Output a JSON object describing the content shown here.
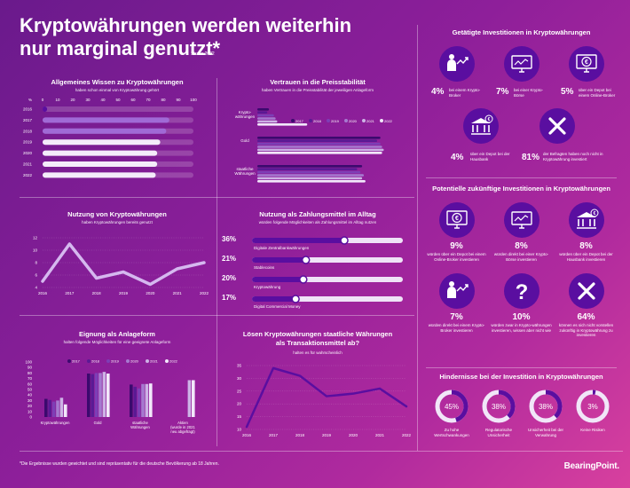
{
  "header": {
    "title": "Kryptowährungen werden weiterhin nur marginal genutzt*",
    "subtitle": "Studie 2022"
  },
  "footnote": "*Die Ergebnisse wurden gewichtet und sind repräsentativ für die deutsche Bevölkerung ab 18 Jahren.",
  "brand": "BearingPoint.",
  "colors": {
    "bg_start": "#6a1a8c",
    "bg_end": "#d8409e",
    "accent": "#5a0ea0",
    "track": "#e9d9f2"
  },
  "panels": {
    "wissen": {
      "title": "Allgemeines Wissen zu Kryptowährungen",
      "subtitle": "haben schon einmal von Kryptowährung gehört"
    },
    "vertrauen": {
      "title": "Vertrauen in die Preisstabilität",
      "subtitle": "haben Vertrauen in die Preisstabilität der jeweiligen Anlageform"
    },
    "nutzung": {
      "title": "Nutzung von Kryptowährungen",
      "subtitle": "haben Kryptowährungen bereits genutzt"
    },
    "zahlung": {
      "title": "Nutzung als Zahlungsmittel im Alltag",
      "subtitle": "würden folgende Möglichkeiten als Zahlungsmittel im Alltag nutzen"
    },
    "eignung": {
      "title": "Eignung als Anlageform",
      "subtitle": "halten folgende Möglichkeiten für eine geeignete Anlageform"
    },
    "loesen": {
      "title_line1": "Lösen Kryptowährungen staatliche Währungen",
      "title_line2": "als Transaktionsmittel ab?",
      "subtitle": "halten es für wahrscheinlich"
    }
  },
  "chart_data": [
    {
      "id": "wissen",
      "type": "bar",
      "orientation": "horizontal",
      "categories": [
        "2016",
        "2017",
        "2018",
        "2019",
        "2020",
        "2021",
        "2022"
      ],
      "values": [
        3,
        84,
        82,
        78,
        76,
        76,
        75
      ],
      "xlim": [
        0,
        100
      ],
      "xticks": [
        "%",
        "0",
        "10",
        "20",
        "30",
        "40",
        "50",
        "60",
        "70",
        "80",
        "90",
        "100"
      ]
    },
    {
      "id": "vertrauen",
      "type": "bar",
      "orientation": "horizontal",
      "categories": [
        "Krypto-\nwährungen",
        "Gold",
        "staatliche\nWährungen"
      ],
      "legend": [
        "2017",
        "2018",
        "2019",
        "2020",
        "2021",
        "2022"
      ],
      "series": [
        {
          "name": "2017",
          "values": [
            7,
            74,
            63
          ]
        },
        {
          "name": "2018",
          "values": [
            6,
            72,
            60
          ]
        },
        {
          "name": "2019",
          "values": [
            10,
            74,
            62
          ]
        },
        {
          "name": "2020",
          "values": [
            11,
            75,
            64
          ]
        },
        {
          "name": "2021",
          "values": [
            12,
            76,
            63
          ]
        },
        {
          "name": "2022",
          "values": [
            30,
            75,
            65
          ]
        }
      ]
    },
    {
      "id": "nutzung",
      "type": "line",
      "x": [
        "2016",
        "2017",
        "2018",
        "2019",
        "2020",
        "2021",
        "2022"
      ],
      "values": [
        5,
        11,
        5.5,
        6.5,
        4.5,
        7,
        8
      ],
      "ylim": [
        4,
        12
      ],
      "yticks": [
        "4",
        "6",
        "8",
        "10",
        "12"
      ]
    },
    {
      "id": "zahlung",
      "type": "bar",
      "orientation": "horizontal",
      "categories": [
        "Digitale Zentralbankwährungen",
        "Stablecoins",
        "Kryptowährung",
        "Digital Commercial Money"
      ],
      "values": [
        36,
        21,
        20,
        17
      ],
      "labels": [
        "36%",
        "21%",
        "20%",
        "17%"
      ]
    },
    {
      "id": "eignung",
      "type": "bar",
      "categories": [
        "Kryptowährungen",
        "Gold",
        "staatliche\nWährungen",
        "Aktien\n(wurde in 2021\nneu abgefragt)"
      ],
      "legend": [
        "2017",
        "2018",
        "2019",
        "2020",
        "2021",
        "2022"
      ],
      "series": [
        {
          "name": "2017",
          "values": [
            33,
            79,
            59,
            null
          ]
        },
        {
          "name": "2018",
          "values": [
            31,
            78,
            55,
            null
          ]
        },
        {
          "name": "2019",
          "values": [
            28,
            80,
            52,
            null
          ]
        },
        {
          "name": "2020",
          "values": [
            30,
            80,
            60,
            null
          ]
        },
        {
          "name": "2021",
          "values": [
            35,
            82,
            60,
            67
          ]
        },
        {
          "name": "2022",
          "values": [
            23,
            79,
            61,
            67
          ]
        }
      ],
      "ylim": [
        0,
        100
      ],
      "yticks": [
        "0",
        "10",
        "20",
        "30",
        "40",
        "50",
        "60",
        "70",
        "80",
        "90",
        "100"
      ]
    },
    {
      "id": "loesen",
      "type": "line",
      "x": [
        "2016",
        "2017",
        "2018",
        "2019",
        "2020",
        "2021",
        "2022"
      ],
      "values": [
        11,
        34,
        31,
        23,
        24,
        26,
        19
      ],
      "ylim": [
        10,
        35
      ],
      "yticks": [
        "10",
        "15",
        "20",
        "25",
        "30",
        "35"
      ]
    }
  ],
  "investments": {
    "title": "Getätigte Investitionen in Kryptowährungen",
    "row1": [
      {
        "icon": "person-chart-icon",
        "pct": "4%",
        "text": "bei einem Krypto-Broker"
      },
      {
        "icon": "monitor-chart-icon",
        "pct": "7%",
        "text": "bei einer Krypto-Börse"
      },
      {
        "icon": "euro-monitor-icon",
        "pct": "5%",
        "text": "über ein Depot bei einem Online-Broker"
      }
    ],
    "row2": [
      {
        "icon": "bank-euro-icon",
        "pct": "4%",
        "text": "über ein Depot bei der Hausbank"
      },
      {
        "icon": "x-icon",
        "pct": "81%",
        "text": "der Befragten haben noch nicht in Kryptowährung investiert"
      }
    ]
  },
  "future": {
    "title": "Potentielle zukünftige Investitionen in Kryptowährungen",
    "items": [
      {
        "icon": "euro-monitor-icon",
        "pct": "9%",
        "text": "würden über ein Depot bei einem Online-Broker investieren"
      },
      {
        "icon": "monitor-chart-icon",
        "pct": "8%",
        "text": "würden direkt bei einer Krypto-Börse investieren"
      },
      {
        "icon": "bank-euro-icon",
        "pct": "8%",
        "text": "würden über ein Depot bei der Hausbank investieren"
      },
      {
        "icon": "person-chart-icon",
        "pct": "7%",
        "text": "würden direkt bei einem Krypto-Broker investieren"
      },
      {
        "icon": "question-icon",
        "pct": "10%",
        "text": "würden zwar in Krypto-währungen investieren, wissen aber nicht wie"
      },
      {
        "icon": "x-icon",
        "pct": "64%",
        "text": "können es sich nicht vorstellen zukünftig in Kryptowährung zu investieren"
      }
    ]
  },
  "hindernisse": {
    "title": "Hindernisse bei der Investition in Kryptowährungen",
    "items": [
      {
        "pct": "45%",
        "value": 45,
        "label": "Zu hohe Wertschwankungen"
      },
      {
        "pct": "38%",
        "value": 38,
        "label": "Regulatorische Unsicherheit"
      },
      {
        "pct": "38%",
        "value": 38,
        "label": "Unsicherheit bei der Verwahrung"
      },
      {
        "pct": "3%",
        "value": 3,
        "label": "Keine Risiken"
      }
    ]
  }
}
